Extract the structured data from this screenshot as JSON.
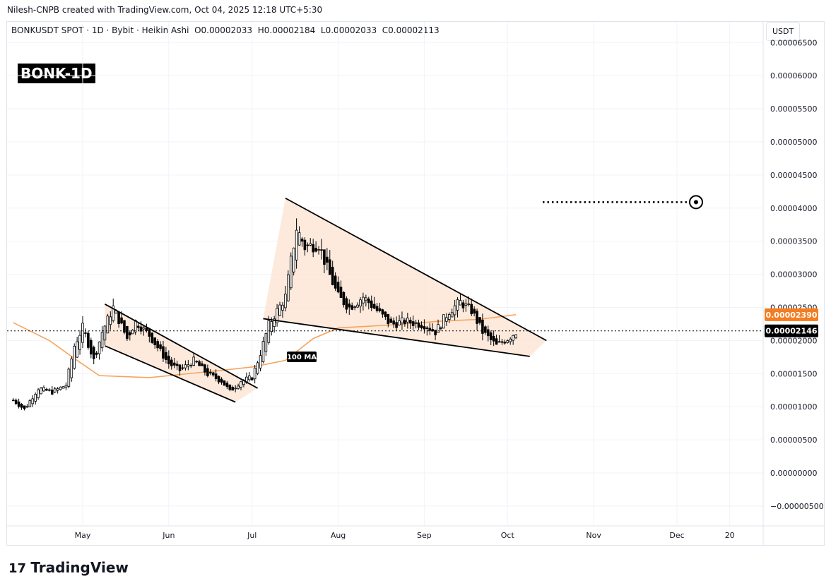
{
  "header": {
    "credit": "Nilesh-CNPB created with TradingView.com, Oct 04, 2025 12:18 UTC+5:30",
    "symbol": "BONKUSDT SPOT · 1D · Bybit · Heikin Ashi",
    "open": "O0.00002033",
    "high": "H0.00002184",
    "low": "L0.00002033",
    "close": "C0.00002113"
  },
  "badge": "BONK-1D",
  "currency": "USDT",
  "brand": "TradingView",
  "ma_label": "100 MA",
  "colors": {
    "up": "#000000",
    "down": "#000000",
    "ma": "#f7a35c",
    "pattern_fill": "#fde5d3",
    "ma_badge": "#f57c1f",
    "price_badge": "#000000"
  },
  "chart_data": {
    "type": "candlestick",
    "ylim": [
      -6.5e-06,
      7e-05
    ],
    "yticks": [
      "0.00006500",
      "0.00006000",
      "0.00005500",
      "0.00005000",
      "0.00004500",
      "0.00004000",
      "0.00003500",
      "0.00003000",
      "0.00002500",
      "0.00002000",
      "0.00001500",
      "0.00001000",
      "0.00000500",
      "0.00000000",
      "−0.00000500"
    ],
    "ytick_values": [
      6.5e-05,
      6e-05,
      5.5e-05,
      5e-05,
      4.5e-05,
      4e-05,
      3.5e-05,
      3e-05,
      2.5e-05,
      2e-05,
      1.5e-05,
      1e-05,
      5e-06,
      0,
      -5e-06
    ],
    "xticks": [
      {
        "label": "May",
        "date": "2025-05-01"
      },
      {
        "label": "Jun",
        "date": "2025-06-01"
      },
      {
        "label": "Jul",
        "date": "2025-07-01"
      },
      {
        "label": "Aug",
        "date": "2025-08-01"
      },
      {
        "label": "Sep",
        "date": "2025-09-01"
      },
      {
        "label": "Oct",
        "date": "2025-10-01"
      },
      {
        "label": "Nov",
        "date": "2025-11-01"
      },
      {
        "label": "Dec",
        "date": "2025-12-01"
      },
      {
        "label": "20",
        "date": "2025-12-20"
      }
    ],
    "price_path": [
      [
        "2025-04-06",
        1.1e-05
      ],
      [
        "2025-04-10",
        9.6e-06
      ],
      [
        "2025-04-15",
        1.28e-05
      ],
      [
        "2025-04-20",
        1.22e-05
      ],
      [
        "2025-04-25",
        1.33e-05
      ],
      [
        "2025-04-28",
        1.92e-05
      ],
      [
        "2025-05-01",
        2.2e-05
      ],
      [
        "2025-05-05",
        1.7e-05
      ],
      [
        "2025-05-08",
        2.13e-05
      ],
      [
        "2025-05-12",
        2.5e-05
      ],
      [
        "2025-05-17",
        2.03e-05
      ],
      [
        "2025-05-20",
        2.29e-05
      ],
      [
        "2025-05-25",
        2.08e-05
      ],
      [
        "2025-06-01",
        1.65e-05
      ],
      [
        "2025-06-05",
        1.55e-05
      ],
      [
        "2025-06-10",
        1.7e-05
      ],
      [
        "2025-06-15",
        1.49e-05
      ],
      [
        "2025-06-20",
        1.39e-05
      ],
      [
        "2025-06-23",
        1.23e-05
      ],
      [
        "2025-06-27",
        1.39e-05
      ],
      [
        "2025-07-01",
        1.44e-05
      ],
      [
        "2025-07-04",
        1.81e-05
      ],
      [
        "2025-07-07",
        2.24e-05
      ],
      [
        "2025-07-10",
        2.45e-05
      ],
      [
        "2025-07-13",
        2.66e-05
      ],
      [
        "2025-07-15",
        3.2e-05
      ],
      [
        "2025-07-17",
        3.7e-05
      ],
      [
        "2025-07-20",
        3.41e-05
      ],
      [
        "2025-07-25",
        3.46e-05
      ],
      [
        "2025-07-28",
        3.09e-05
      ],
      [
        "2025-08-01",
        2.66e-05
      ],
      [
        "2025-08-05",
        2.5e-05
      ],
      [
        "2025-08-10",
        2.66e-05
      ],
      [
        "2025-08-15",
        2.45e-05
      ],
      [
        "2025-08-20",
        2.24e-05
      ],
      [
        "2025-08-25",
        2.29e-05
      ],
      [
        "2025-09-01",
        2.24e-05
      ],
      [
        "2025-09-05",
        2.13e-05
      ],
      [
        "2025-09-10",
        2.45e-05
      ],
      [
        "2025-09-14",
        2.58e-05
      ],
      [
        "2025-09-18",
        2.45e-05
      ],
      [
        "2025-09-22",
        2.13e-05
      ],
      [
        "2025-09-27",
        1.92e-05
      ],
      [
        "2025-10-01",
        2.03e-05
      ],
      [
        "2025-10-04",
        2.13e-05
      ]
    ],
    "ma100": [
      [
        "2025-04-06",
        2.27e-05
      ],
      [
        "2025-04-19",
        2e-05
      ],
      [
        "2025-04-29",
        1.7e-05
      ],
      [
        "2025-05-07",
        1.47e-05
      ],
      [
        "2025-05-25",
        1.44e-05
      ],
      [
        "2025-06-20",
        1.55e-05
      ],
      [
        "2025-07-01",
        1.6e-05
      ],
      [
        "2025-07-13",
        1.7e-05
      ],
      [
        "2025-07-23",
        2.03e-05
      ],
      [
        "2025-08-01",
        2.19e-05
      ],
      [
        "2025-08-22",
        2.24e-05
      ],
      [
        "2025-09-06",
        2.29e-05
      ],
      [
        "2025-09-21",
        2.32e-05
      ],
      [
        "2025-10-04",
        2.39e-05
      ]
    ],
    "current_price": 2.146e-05,
    "current_price_label": "0.00002146",
    "ma_value": 2.39e-05,
    "ma_value_label": "0.00002390",
    "target_level": 4.09e-05,
    "patterns": [
      {
        "kind": "falling-wedge",
        "upper": [
          [
            "2025-05-09",
            2.55e-05
          ],
          [
            "2025-07-03",
            1.28e-05
          ]
        ],
        "lower": [
          [
            "2025-05-09",
            1.92e-05
          ],
          [
            "2025-06-25",
            1.07e-05
          ]
        ]
      },
      {
        "kind": "falling-wedge",
        "upper": [
          [
            "2025-07-13",
            4.15e-05
          ],
          [
            "2025-10-15",
            2e-05
          ]
        ],
        "lower": [
          [
            "2025-07-05",
            2.33e-05
          ],
          [
            "2025-10-09",
            1.76e-05
          ]
        ]
      }
    ]
  }
}
